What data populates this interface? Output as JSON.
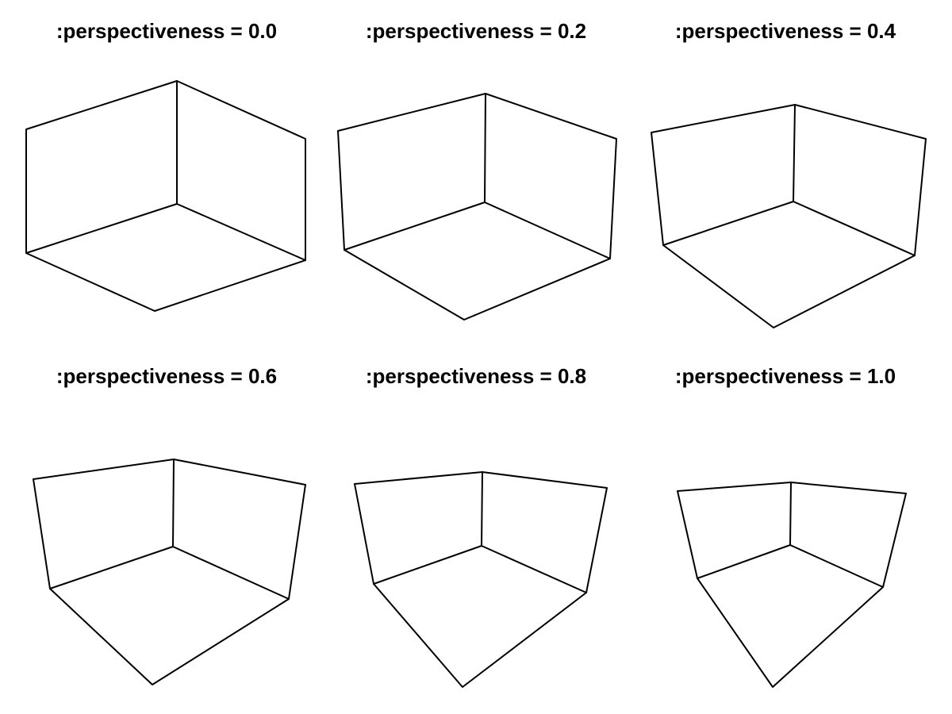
{
  "panels": [
    {
      "title": ":perspectiveness = 0.0",
      "perspectiveness": 0.0
    },
    {
      "title": ":perspectiveness = 0.2",
      "perspectiveness": 0.2
    },
    {
      "title": ":perspectiveness = 0.4",
      "perspectiveness": 0.4
    },
    {
      "title": ":perspectiveness = 0.6",
      "perspectiveness": 0.6
    },
    {
      "title": ":perspectiveness = 0.8",
      "perspectiveness": 0.8
    },
    {
      "title": ":perspectiveness = 1.0",
      "perspectiveness": 1.0
    }
  ],
  "colors": {
    "background": "#ffffff",
    "line": "#000000",
    "text": "#000000"
  }
}
